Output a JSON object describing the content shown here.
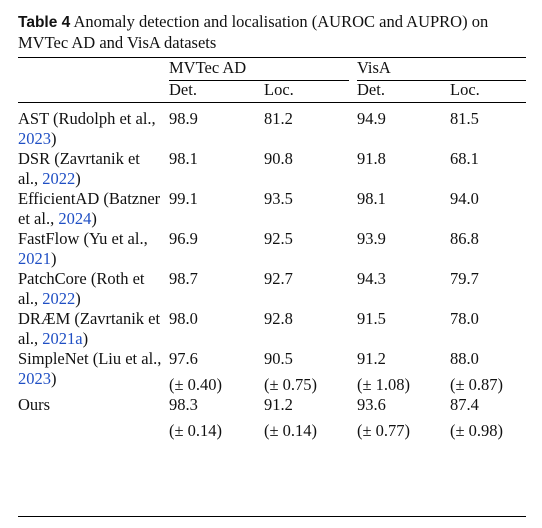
{
  "caption": {
    "label": "Table 4",
    "text": "Anomaly detection and localisation (AUROC and AUPRO) on MVTec AD and VisA datasets"
  },
  "header": {
    "groups": [
      "MVTec AD",
      "VisA"
    ],
    "subcolumns": [
      "Det.",
      "Loc.",
      "Det.",
      "Loc."
    ]
  },
  "rows": [
    {
      "method": "AST (Rudolph et al., ",
      "cite": "2023",
      "tail": ")",
      "values": [
        "98.9",
        "81.2",
        "94.9",
        "81.5"
      ]
    },
    {
      "method": "DSR (Zavrtanik et al., ",
      "cite": "2022",
      "tail": ")",
      "values": [
        "98.1",
        "90.8",
        "91.8",
        "68.1"
      ]
    },
    {
      "method": "EfficientAD (Batzner et al., ",
      "cite": "2024",
      "tail": ")",
      "values": [
        "99.1",
        "93.5",
        "98.1",
        "94.0"
      ]
    },
    {
      "method": "FastFlow (Yu et al., ",
      "cite": "2021",
      "tail": ")",
      "values": [
        "96.9",
        "92.5",
        "93.9",
        "86.8"
      ]
    },
    {
      "method": "PatchCore (Roth et al., ",
      "cite": "2022",
      "tail": ")",
      "values": [
        "98.7",
        "92.7",
        "94.3",
        "79.7"
      ]
    },
    {
      "method": "DRÆM (Zavrtanik et al., ",
      "cite": "2021a",
      "tail": ")",
      "values": [
        "98.0",
        "92.8",
        "91.5",
        "78.0"
      ]
    },
    {
      "method": "SimpleNet (Liu et al., ",
      "cite": "2023",
      "tail": ")",
      "values": [
        "97.6",
        "90.5",
        "91.2",
        "88.0"
      ],
      "std": [
        "(± 0.40)",
        "(± 0.75)",
        "(± 1.08)",
        "(± 0.87)"
      ]
    },
    {
      "method": "Ours",
      "cite": "",
      "tail": "",
      "values": [
        "98.3",
        "91.2",
        "93.6",
        "87.4"
      ],
      "std": [
        "(± 0.14)",
        "(± 0.14)",
        "(± 0.77)",
        "(± 0.98)"
      ]
    }
  ],
  "colors": {
    "citation": "#1f4fc4",
    "text": "#111111"
  }
}
